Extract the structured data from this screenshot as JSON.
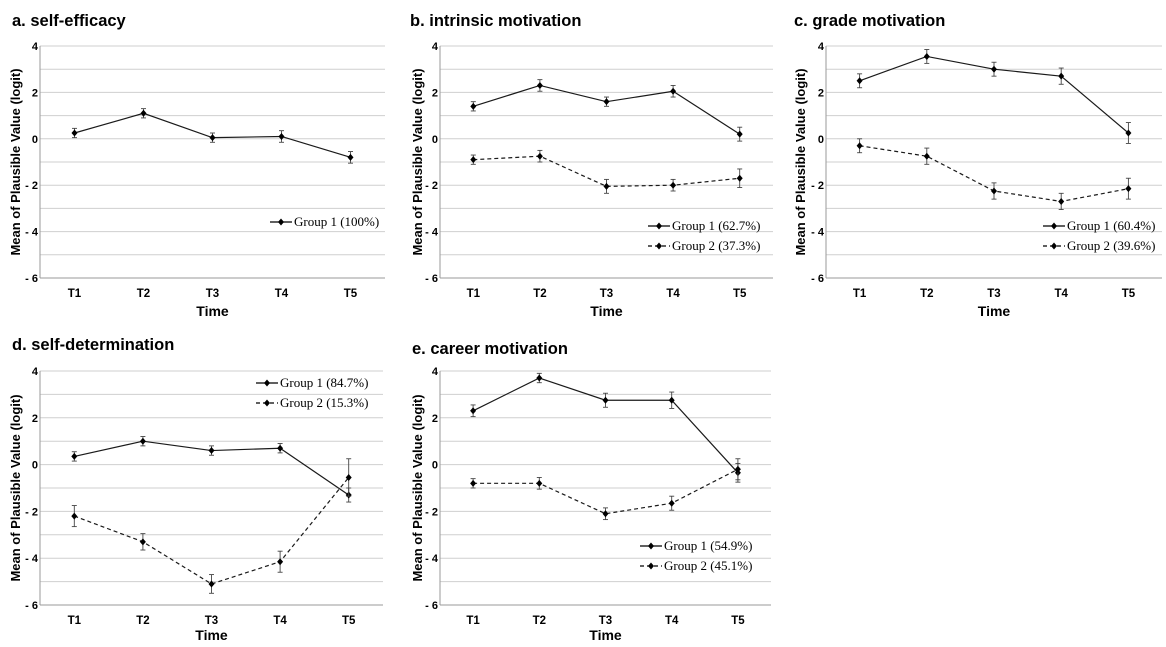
{
  "chart_data": [
    {
      "type": "line",
      "title": "a. self-efficacy",
      "xlabel": "Time",
      "ylabel": "Mean of Plausible Value (logit)",
      "categories": [
        "T1",
        "T2",
        "T3",
        "T4",
        "T5"
      ],
      "ylim": [
        -6,
        4
      ],
      "yticks": [
        "4",
        "2",
        "0",
        "- 2",
        "- 4",
        "- 6"
      ],
      "grid": true,
      "legend_position": "lower-right",
      "series": [
        {
          "name": "Group 1 (100%)",
          "style": "solid",
          "values": [
            0.25,
            1.1,
            0.05,
            0.1,
            -0.8
          ],
          "err": [
            0.2,
            0.2,
            0.2,
            0.25,
            0.25
          ]
        }
      ]
    },
    {
      "type": "line",
      "title": "b. intrinsic motivation",
      "xlabel": "Time",
      "ylabel": "Mean of Plausible Value (logit)",
      "categories": [
        "T1",
        "T2",
        "T3",
        "T4",
        "T5"
      ],
      "ylim": [
        -6,
        4
      ],
      "yticks": [
        "4",
        "2",
        "0",
        "- 2",
        "- 4",
        "- 6"
      ],
      "grid": true,
      "legend_position": "lower-right",
      "series": [
        {
          "name": "Group 1 (62.7%)",
          "style": "solid",
          "values": [
            1.4,
            2.3,
            1.6,
            2.05,
            0.2
          ],
          "err": [
            0.2,
            0.25,
            0.2,
            0.25,
            0.3
          ]
        },
        {
          "name": "Group 2 (37.3%)",
          "style": "dashed",
          "values": [
            -0.9,
            -0.75,
            -2.05,
            -2.0,
            -1.7
          ],
          "err": [
            0.2,
            0.25,
            0.3,
            0.25,
            0.4
          ]
        }
      ]
    },
    {
      "type": "line",
      "title": "c. grade motivation",
      "xlabel": "Time",
      "ylabel": "Mean of Plausible Value (logit)",
      "categories": [
        "T1",
        "T2",
        "T3",
        "T4",
        "T5"
      ],
      "ylim": [
        -6,
        4
      ],
      "yticks": [
        "4",
        "2",
        "0",
        "- 2",
        "- 4",
        "- 6"
      ],
      "grid": true,
      "legend_position": "lower-right",
      "series": [
        {
          "name": "Group 1 (60.4%)",
          "style": "solid",
          "values": [
            2.5,
            3.55,
            3.0,
            2.7,
            0.25
          ],
          "err": [
            0.3,
            0.3,
            0.3,
            0.35,
            0.45
          ]
        },
        {
          "name": "Group 2 (39.6%)",
          "style": "dashed",
          "values": [
            -0.3,
            -0.75,
            -2.25,
            -2.7,
            -2.15
          ],
          "err": [
            0.3,
            0.35,
            0.35,
            0.35,
            0.45
          ]
        }
      ]
    },
    {
      "type": "line",
      "title": "d. self-determination",
      "xlabel": "Time",
      "ylabel": "Mean of Plausible Value (logit)",
      "categories": [
        "T1",
        "T2",
        "T3",
        "T4",
        "T5"
      ],
      "ylim": [
        -6,
        4
      ],
      "yticks": [
        "4",
        "2",
        "0",
        "- 2",
        "- 4",
        "- 6"
      ],
      "grid": true,
      "legend_position": "top-right",
      "series": [
        {
          "name": "Group 1 (84.7%)",
          "style": "solid",
          "values": [
            0.35,
            1.0,
            0.6,
            0.7,
            -1.3
          ],
          "err": [
            0.2,
            0.2,
            0.2,
            0.2,
            0.3
          ]
        },
        {
          "name": "Group 2 (15.3%)",
          "style": "dashed",
          "values": [
            -2.2,
            -3.3,
            -5.1,
            -4.15,
            -0.55
          ],
          "err": [
            0.45,
            0.35,
            0.4,
            0.45,
            0.8
          ]
        }
      ]
    },
    {
      "type": "line",
      "title": "e. career motivation",
      "xlabel": "Time",
      "ylabel": "Mean of Plausible Value (logit)",
      "categories": [
        "T1",
        "T2",
        "T3",
        "T4",
        "T5"
      ],
      "ylim": [
        -6,
        4
      ],
      "yticks": [
        "4",
        "2",
        "0",
        "- 2",
        "- 4",
        "- 6"
      ],
      "grid": true,
      "legend_position": "lower-right",
      "series": [
        {
          "name": "Group 1  (54.9%)",
          "style": "solid",
          "values": [
            2.3,
            3.7,
            2.75,
            2.75,
            -0.35
          ],
          "err": [
            0.25,
            0.2,
            0.3,
            0.35,
            0.4
          ]
        },
        {
          "name": "Group 2  (45.1%)",
          "style": "dashed",
          "values": [
            -0.8,
            -0.8,
            -2.1,
            -1.65,
            -0.2
          ],
          "err": [
            0.2,
            0.25,
            0.25,
            0.3,
            0.45
          ]
        }
      ]
    }
  ]
}
